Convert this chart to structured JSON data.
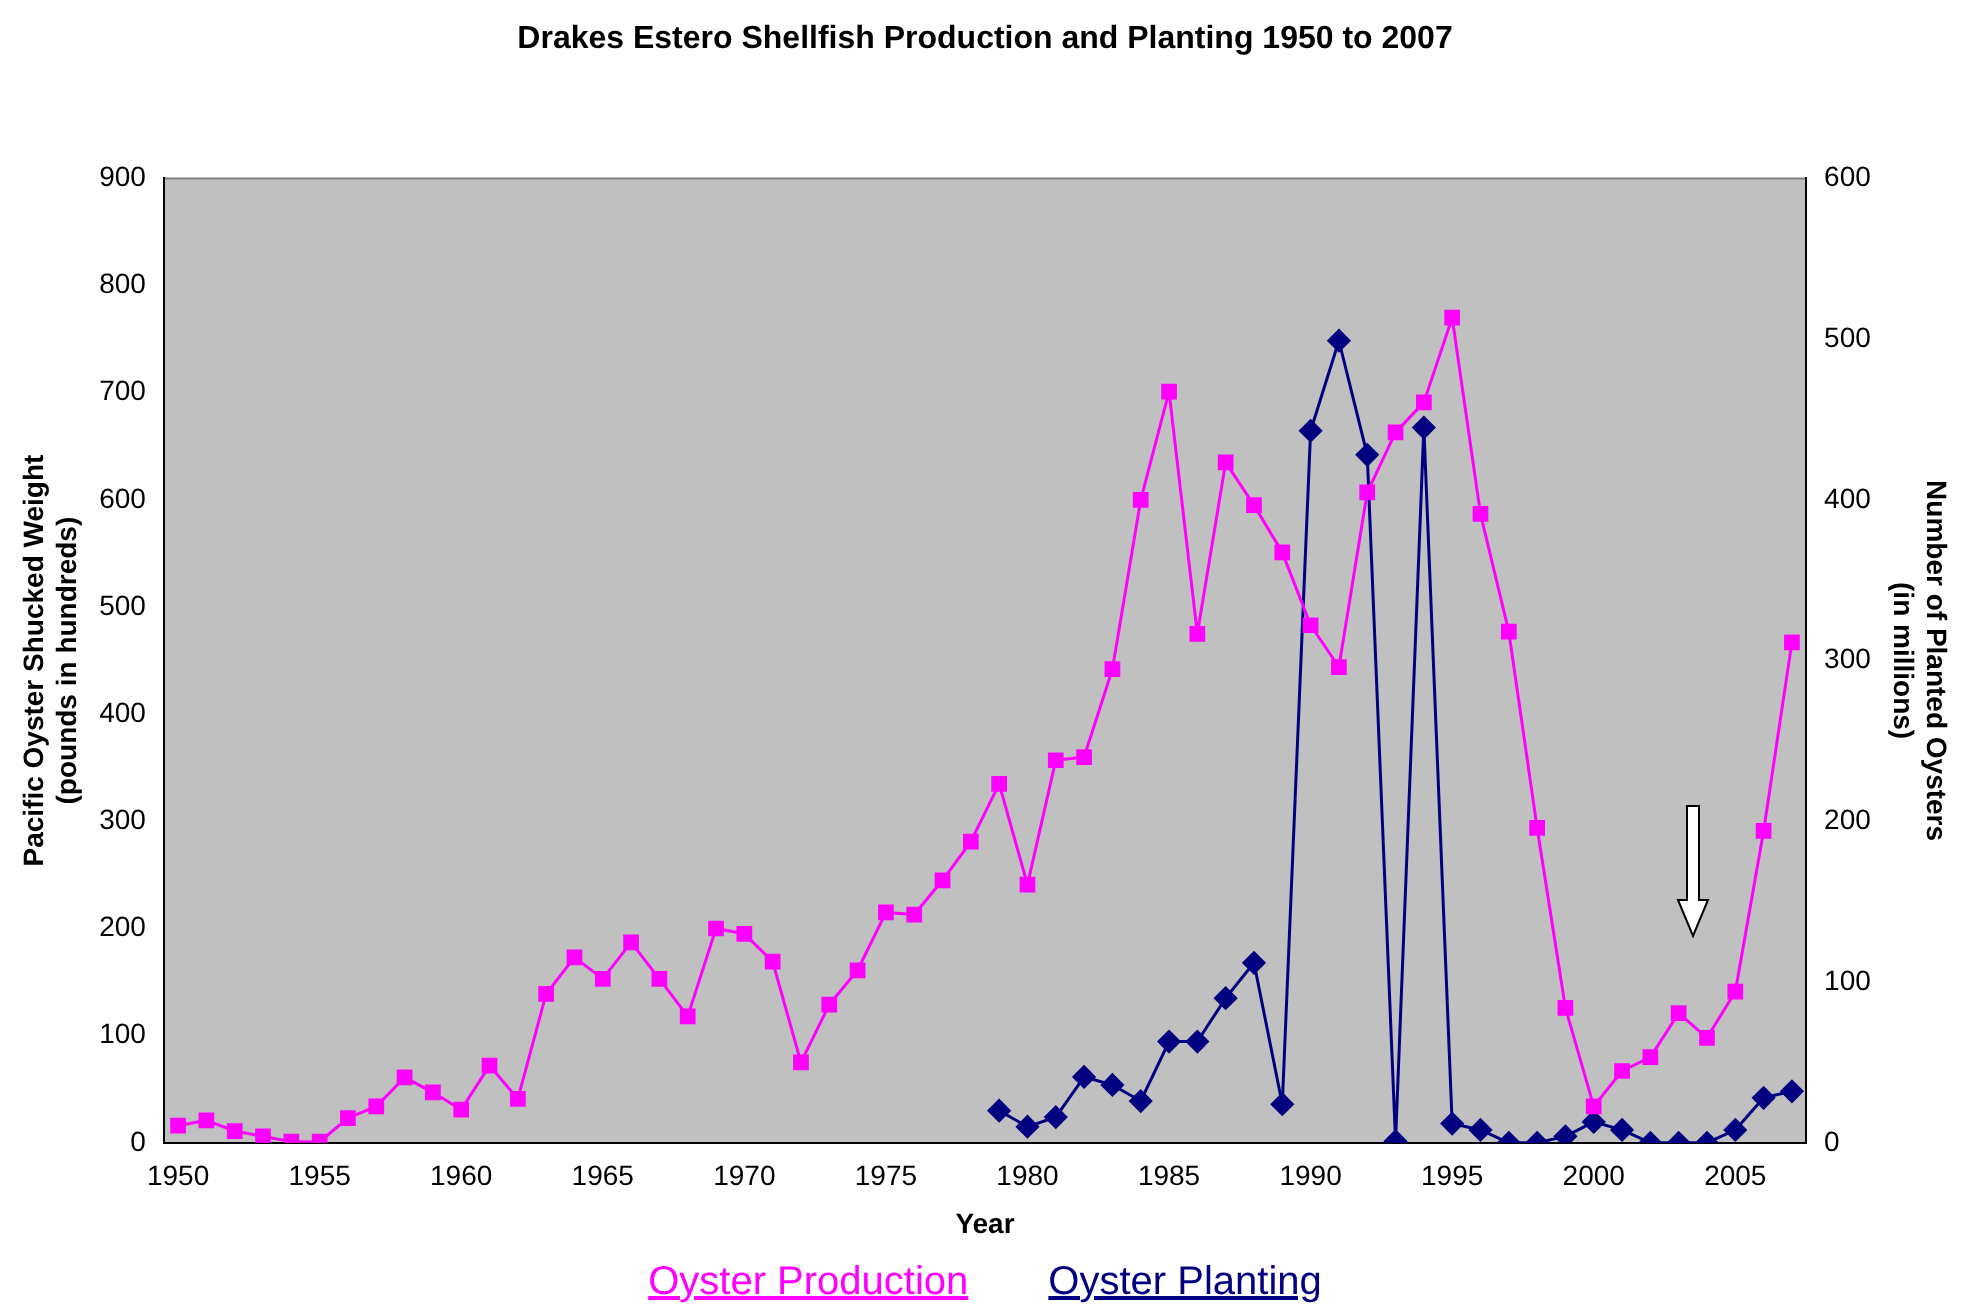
{
  "chart_data": {
    "type": "line",
    "title": "Drakes Estero Shellfish Production and Planting 1950 to 2007",
    "xlabel": "Year",
    "ylabel": "Pacific Oyster Shucked Weight\n(pounds in hundreds)",
    "y2label": "Number of Planted Oysters\n(in millions)",
    "x": [
      1950,
      1951,
      1952,
      1953,
      1954,
      1955,
      1956,
      1957,
      1958,
      1959,
      1960,
      1961,
      1962,
      1963,
      1964,
      1965,
      1966,
      1967,
      1968,
      1969,
      1970,
      1971,
      1972,
      1973,
      1974,
      1975,
      1976,
      1977,
      1978,
      1979,
      1980,
      1981,
      1982,
      1983,
      1984,
      1985,
      1986,
      1987,
      1988,
      1989,
      1990,
      1991,
      1992,
      1993,
      1994,
      1995,
      1996,
      1997,
      1998,
      1999,
      2000,
      2001,
      2002,
      2003,
      2004,
      2005,
      2006,
      2007
    ],
    "xlim": [
      1949.5,
      2007.5
    ],
    "xticks": [
      1950,
      1955,
      1960,
      1965,
      1970,
      1975,
      1980,
      1985,
      1990,
      1995,
      2000,
      2005
    ],
    "ylim": [
      0,
      900
    ],
    "yticks": [
      0,
      100,
      200,
      300,
      400,
      500,
      600,
      700,
      800,
      900
    ],
    "y2lim": [
      0,
      600
    ],
    "y2ticks": [
      0,
      100,
      200,
      300,
      400,
      500,
      600
    ],
    "grid": false,
    "legend": "bottom",
    "line_style": "solid",
    "series": [
      {
        "name": "Oyster Production",
        "color": "#ff00ff",
        "marker": "square",
        "values": [
          16,
          21,
          11,
          6,
          1,
          1,
          23,
          34,
          61,
          47,
          31,
          72,
          41,
          139,
          173,
          153,
          187,
          153,
          118,
          200,
          195,
          169,
          75,
          129,
          161,
          215,
          213,
          245,
          281,
          335,
          241,
          357,
          360,
          442,
          600,
          701,
          475,
          635,
          595,
          551,
          483,
          444,
          607,
          663,
          691,
          770,
          587,
          477,
          294,
          126,
          34,
          67,
          80,
          121,
          98,
          141,
          291,
          467
        ]
      },
      {
        "name": "Oyster Planting",
        "color": "#000080",
        "marker": "diamond",
        "axis": "y2",
        "values": [
          null,
          null,
          null,
          null,
          null,
          null,
          null,
          null,
          null,
          null,
          null,
          null,
          null,
          null,
          null,
          null,
          null,
          null,
          null,
          null,
          null,
          null,
          null,
          null,
          null,
          null,
          null,
          null,
          null,
          20,
          10,
          16,
          41,
          36,
          26,
          63,
          63,
          90,
          112,
          24,
          443,
          499,
          428,
          1,
          445,
          12,
          8,
          0,
          0,
          4,
          13,
          8,
          0,
          0,
          0,
          8,
          28,
          32
        ]
      }
    ]
  }
}
